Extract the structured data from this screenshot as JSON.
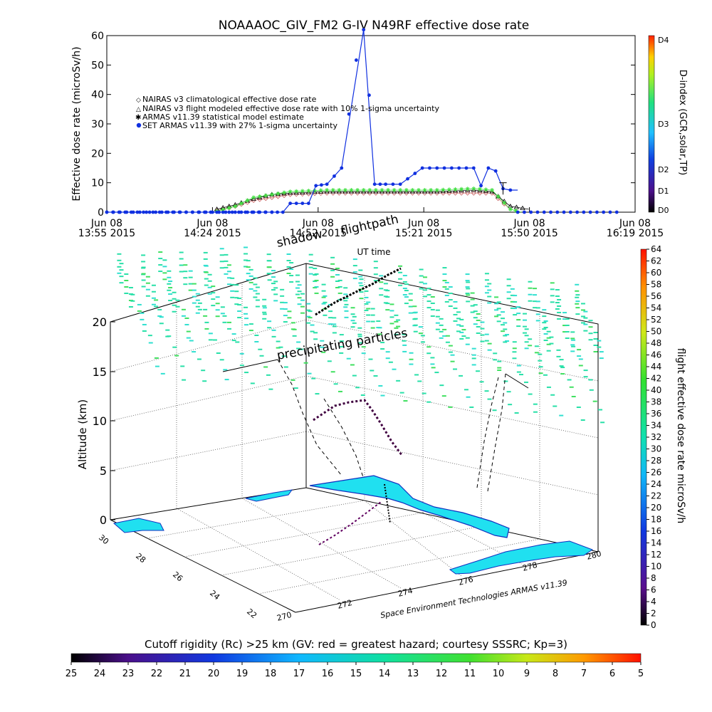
{
  "top_chart": {
    "title": "NOAAAOC_GIV_FM2 G-IV    N49RF  effective dose rate",
    "ylabel": "Effective dose rate (microSv/h)",
    "xlabel": "UT time",
    "right_axis_label": "D-index (GCR,solar,TP)",
    "d_index_ticks": [
      "D4",
      "D3",
      "D2",
      "D1",
      "D0"
    ],
    "legend": [
      "NAIRAS v3 climatological effective dose rate",
      "NAIRAS v3 flight modeled effective dose rate with 10% 1-sigma uncertainty",
      "ARMAS v11.39 statistical model estimate",
      "SET ARMAS v11.39 with 27% 1-sigma uncertainty"
    ],
    "colors": {
      "nairas_clim": "#c86464",
      "nairas_flight": "#000000",
      "armas_model": "#44e044",
      "set_armas": "#1030e0"
    }
  },
  "chart_data": [
    {
      "type": "line",
      "title": "NOAAAOC_GIV_FM2 G-IV    N49RF  effective dose rate",
      "xlabel": "UT time",
      "ylabel": "Effective dose rate (microSv/h)",
      "ylim": [
        0,
        60
      ],
      "yticks": [
        0,
        10,
        20,
        30,
        40,
        50,
        60
      ],
      "x_tick_labels": [
        {
          "date": "Jun 08",
          "time": "13:55 2015"
        },
        {
          "date": "Jun 08",
          "time": "14:24 2015"
        },
        {
          "date": "Jun 08",
          "time": "14:52 2015"
        },
        {
          "date": "Jun 08",
          "time": "15:21 2015"
        },
        {
          "date": "Jun 08",
          "time": "15:50 2015"
        },
        {
          "date": "Jun 08",
          "time": "16:19 2015"
        }
      ],
      "x_unit": "minutes after 13:55 UT",
      "xlim": [
        0,
        144
      ],
      "legend_placement": "upper-left",
      "series": [
        {
          "name": "NAIRAS v3 climatological effective dose rate",
          "x": [
            30,
            35,
            40,
            45,
            50,
            60,
            70,
            80,
            90,
            100,
            105,
            110
          ],
          "y": [
            0.5,
            2,
            4,
            5,
            6,
            6.5,
            6.5,
            6.5,
            6.5,
            6.5,
            6.5,
            1
          ]
        },
        {
          "name": "NAIRAS v3 flight modeled effective dose rate with 10% 1-sigma uncertainty",
          "x": [
            30,
            35,
            40,
            45,
            50,
            60,
            70,
            80,
            90,
            100,
            105,
            110,
            115
          ],
          "y": [
            1,
            2.5,
            4.5,
            6,
            6.5,
            7,
            7,
            7,
            7,
            7.5,
            7,
            2,
            1
          ]
        },
        {
          "name": "ARMAS v11.39 statistical model estimate",
          "x": [
            30,
            35,
            40,
            45,
            50,
            60,
            70,
            80,
            90,
            100,
            105,
            110,
            113
          ],
          "y": [
            0.3,
            2,
            5,
            6,
            7,
            7.5,
            7.5,
            7.5,
            7.5,
            8,
            7.5,
            1,
            0
          ]
        },
        {
          "name": "SET ARMAS v11.39 with 27% 1-sigma uncertainty",
          "x": [
            0,
            10,
            20,
            30,
            40,
            45,
            48,
            50,
            55,
            57,
            60,
            64,
            70,
            73,
            76,
            80,
            86,
            90,
            96,
            100,
            102,
            104,
            106,
            108,
            110,
            112
          ],
          "y": [
            0,
            0,
            0,
            0,
            0,
            0,
            0,
            3,
            3,
            9,
            9.5,
            15,
            70,
            9.5,
            9.5,
            9.5,
            15,
            15,
            15,
            15,
            9,
            15,
            14,
            8,
            7.5,
            7.5
          ]
        }
      ],
      "tail_points": {
        "x": [
          112,
          120,
          130,
          140
        ],
        "y": [
          0,
          0,
          0,
          0
        ]
      },
      "right_axis_ticks": [
        "D4",
        "D3",
        "D2",
        "D1",
        "D0"
      ]
    },
    {
      "type": "scatter",
      "title": "",
      "xlabel": "",
      "ylabel": "Altitude (km)",
      "zlim": [
        0,
        20
      ],
      "z_ticks": [
        0,
        5,
        10,
        15,
        20
      ],
      "lat_ticks": [
        22,
        24,
        26,
        28,
        30
      ],
      "lon_ticks": [
        270,
        272,
        274,
        276,
        278,
        280
      ],
      "annotations": [
        "shadow",
        "flightpath",
        "precipitating particles",
        "UT time"
      ],
      "colorbar": {
        "label": "flight effective dose rate microSv/h",
        "min": 0,
        "max": 64,
        "ticks": [
          0,
          2,
          4,
          6,
          8,
          10,
          12,
          14,
          16,
          18,
          20,
          22,
          24,
          26,
          28,
          30,
          32,
          34,
          36,
          38,
          40,
          42,
          44,
          46,
          48,
          50,
          52,
          54,
          56,
          58,
          60,
          62,
          64
        ]
      },
      "credit": "Space Environment Technologies ARMAS v11.39"
    }
  ],
  "bottom_colorbar": {
    "title": "Cutoff rigidity (Rc) >25 km (GV: red = greatest hazard; courtesy SSSRC; Kp=3)",
    "ticks": [
      "25",
      "24",
      "23",
      "22",
      "21",
      "20",
      "19",
      "18",
      "17",
      "16",
      "15",
      "14",
      "13",
      "12",
      "11",
      "10",
      "9",
      "8",
      "7",
      "6",
      "5"
    ]
  },
  "scene3d": {
    "shadow_label": "shadow",
    "flightpath_label": "flightpath",
    "ut_label": "UT time",
    "particles_label": "precipitating particles",
    "altitude_label": "Altitude (km)",
    "credit": "Space Environment Technologies ARMAS v11.39",
    "colorbar_label": "flight effective dose rate microSv/h"
  }
}
